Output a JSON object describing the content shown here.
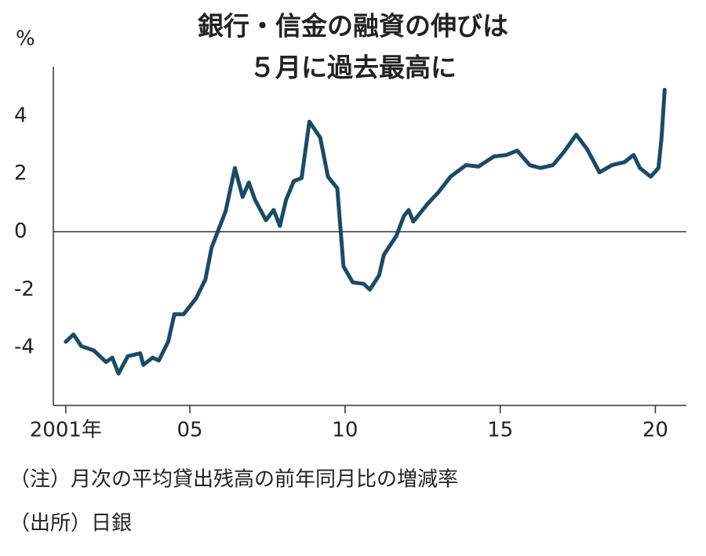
{
  "chart_data": {
    "type": "line",
    "title": [
      "銀行・信金の融資の伸びは",
      "５月に過去最高に"
    ],
    "y_label": "%",
    "x": [
      2001.0,
      2001.25,
      2001.5,
      2001.9,
      2002.3,
      2002.5,
      2002.7,
      2003.0,
      2003.4,
      2003.5,
      2003.8,
      2004.0,
      2004.3,
      2004.5,
      2004.8,
      2005.2,
      2005.5,
      2005.7,
      2005.95,
      2006.15,
      2006.45,
      2006.7,
      2006.9,
      2007.1,
      2007.45,
      2007.7,
      2007.9,
      2008.1,
      2008.35,
      2008.6,
      2008.85,
      2009.2,
      2009.45,
      2009.75,
      2009.95,
      2010.25,
      2010.6,
      2010.8,
      2011.1,
      2011.25,
      2011.65,
      2011.9,
      2012.05,
      2012.2,
      2012.65,
      2013.0,
      2013.4,
      2013.9,
      2014.3,
      2014.8,
      2015.2,
      2015.55,
      2015.95,
      2016.3,
      2016.7,
      2017.05,
      2017.45,
      2017.8,
      2018.2,
      2018.6,
      2019.0,
      2019.3,
      2019.5,
      2019.85,
      2020.1,
      2020.2,
      2020.3
    ],
    "series": [
      {
        "color": "#1d4a63",
        "values": [
          -3.8,
          -3.55,
          -3.95,
          -4.1,
          -4.5,
          -4.35,
          -4.9,
          -4.3,
          -4.2,
          -4.6,
          -4.35,
          -4.45,
          -3.8,
          -2.85,
          -2.85,
          -2.3,
          -1.65,
          -0.55,
          0.15,
          0.7,
          2.2,
          1.2,
          1.7,
          1.1,
          0.4,
          0.75,
          0.2,
          1.1,
          1.75,
          1.85,
          3.8,
          3.25,
          1.9,
          1.5,
          -1.2,
          -1.75,
          -1.8,
          -2.0,
          -1.5,
          -0.8,
          -0.15,
          0.55,
          0.75,
          0.35,
          0.95,
          1.35,
          1.9,
          2.3,
          2.25,
          2.6,
          2.65,
          2.8,
          2.3,
          2.2,
          2.3,
          2.75,
          3.35,
          2.85,
          2.05,
          2.3,
          2.4,
          2.65,
          2.2,
          1.9,
          2.2,
          3.25,
          4.9
        ]
      }
    ],
    "xlim": [
      2000.6,
      2021.0
    ],
    "xticks": [
      {
        "value": 2001,
        "label": "2001年"
      },
      {
        "value": 2005,
        "label": "05"
      },
      {
        "value": 2010,
        "label": "10"
      },
      {
        "value": 2015,
        "label": "15"
      },
      {
        "value": 2020,
        "label": "20"
      }
    ],
    "ylim": [
      -6,
      5.7
    ],
    "yticks": [
      -4,
      -2,
      0,
      2,
      4
    ],
    "zero_line": true,
    "notes": [
      "（注）月次の平均貸出残高の前年同月比の増減率",
      "（出所）日銀"
    ]
  }
}
